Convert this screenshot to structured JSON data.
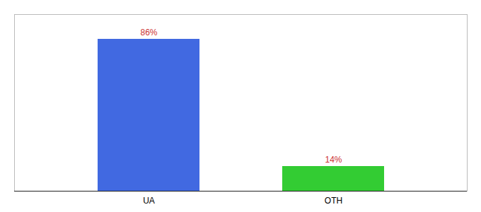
{
  "chart_data": {
    "type": "bar",
    "categories": [
      "UA",
      "OTH"
    ],
    "values": [
      86,
      14
    ],
    "value_labels": [
      "86%",
      "14%"
    ],
    "colors": [
      "#4169e1",
      "#33cc33"
    ],
    "ylim": [
      0,
      100
    ],
    "data_labels": true,
    "tick_labels": "x",
    "grid": false
  }
}
